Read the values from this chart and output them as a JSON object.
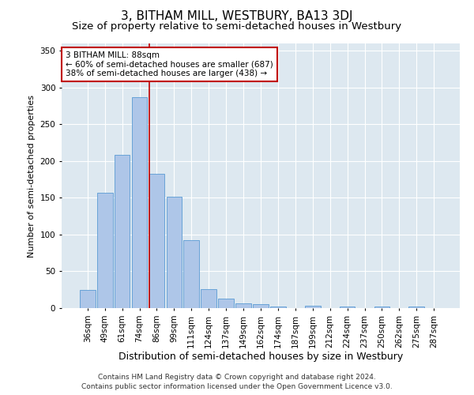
{
  "title": "3, BITHAM MILL, WESTBURY, BA13 3DJ",
  "subtitle": "Size of property relative to semi-detached houses in Westbury",
  "xlabel": "Distribution of semi-detached houses by size in Westbury",
  "ylabel": "Number of semi-detached properties",
  "categories": [
    "36sqm",
    "49sqm",
    "61sqm",
    "74sqm",
    "86sqm",
    "99sqm",
    "111sqm",
    "124sqm",
    "137sqm",
    "149sqm",
    "162sqm",
    "174sqm",
    "187sqm",
    "199sqm",
    "212sqm",
    "224sqm",
    "237sqm",
    "250sqm",
    "262sqm",
    "275sqm",
    "287sqm"
  ],
  "values": [
    25,
    157,
    208,
    287,
    183,
    152,
    92,
    26,
    13,
    6,
    5,
    2,
    0,
    3,
    0,
    2,
    0,
    2,
    0,
    2,
    0
  ],
  "bar_color": "#aec6e8",
  "bar_edge_color": "#5a9bd4",
  "red_line_bar_index": 4,
  "highlight_color": "#c00000",
  "annotation_text": "3 BITHAM MILL: 88sqm\n← 60% of semi-detached houses are smaller (687)\n38% of semi-detached houses are larger (438) →",
  "annotation_box_facecolor": "#ffffff",
  "annotation_box_edgecolor": "#c00000",
  "ylim": [
    0,
    360
  ],
  "yticks": [
    0,
    50,
    100,
    150,
    200,
    250,
    300,
    350
  ],
  "plot_bg_color": "#dde8f0",
  "fig_bg_color": "#ffffff",
  "grid_color": "#ffffff",
  "title_fontsize": 11,
  "subtitle_fontsize": 9.5,
  "xlabel_fontsize": 9,
  "ylabel_fontsize": 8,
  "tick_fontsize": 7.5,
  "annotation_fontsize": 7.5,
  "footer_fontsize": 6.5,
  "footer_line1": "Contains HM Land Registry data © Crown copyright and database right 2024.",
  "footer_line2": "Contains public sector information licensed under the Open Government Licence v3.0."
}
